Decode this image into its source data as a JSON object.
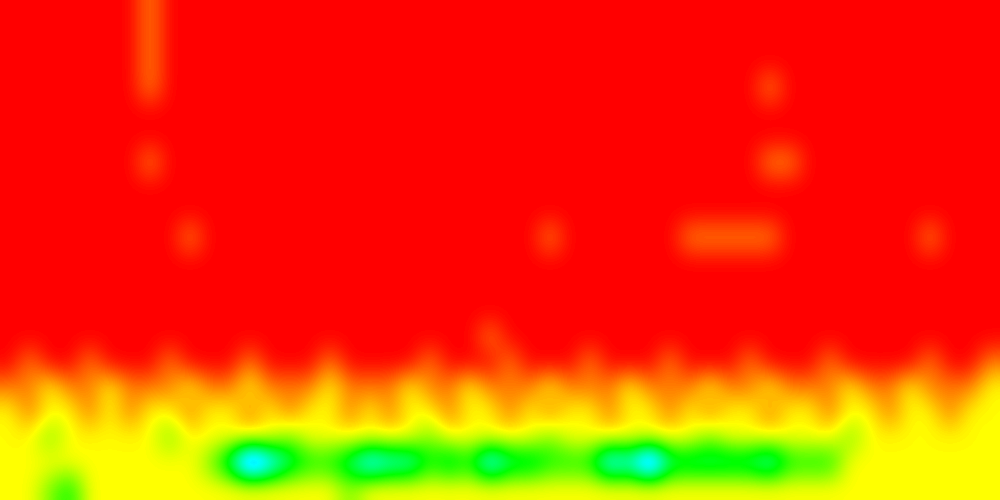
{
  "chart_data": {
    "type": "heatmap",
    "tick_labels": false,
    "zlim": [
      0,
      10
    ],
    "cells": [
      [
        0,
        0,
        0,
        0,
        0,
        0,
        0,
        1,
        0,
        0,
        0,
        0,
        0,
        0,
        0,
        0,
        0,
        0,
        0,
        0,
        0,
        0,
        0,
        0,
        0,
        0,
        0,
        0,
        0,
        0,
        0,
        0,
        0,
        0,
        0,
        0,
        0,
        0,
        0,
        0,
        0,
        0,
        0,
        0,
        0,
        0,
        0,
        0,
        0,
        0
      ],
      [
        0,
        0,
        0,
        0,
        0,
        0,
        0,
        1,
        0,
        0,
        0,
        0,
        0,
        0,
        0,
        0,
        0,
        0,
        0,
        0,
        0,
        0,
        0,
        0,
        0,
        0,
        0,
        0,
        0,
        0,
        0,
        0,
        0,
        0,
        0,
        0,
        0,
        0,
        0,
        0,
        0,
        0,
        0,
        0,
        0,
        0,
        0,
        0,
        0,
        0
      ],
      [
        0,
        0,
        0,
        0,
        0,
        0,
        0,
        1,
        0,
        0,
        0,
        0,
        0,
        0,
        0,
        0,
        0,
        0,
        0,
        0,
        0,
        0,
        0,
        0,
        0,
        0,
        0,
        0,
        0,
        0,
        0,
        0,
        0,
        0,
        0,
        0,
        0,
        0,
        0,
        0,
        0,
        0,
        0,
        0,
        0,
        0,
        0,
        0,
        0,
        0
      ],
      [
        0,
        0,
        0,
        0,
        0,
        0,
        0,
        1,
        0,
        0,
        0,
        0,
        0,
        0,
        0,
        0,
        0,
        0,
        0,
        0,
        0,
        0,
        0,
        0,
        0,
        0,
        0,
        0,
        0,
        0,
        0,
        0,
        0,
        0,
        0,
        0,
        0,
        0,
        1,
        0,
        0,
        0,
        0,
        0,
        0,
        0,
        0,
        0,
        0,
        0
      ],
      [
        0,
        0,
        0,
        0,
        0,
        0,
        0,
        0,
        0,
        0,
        0,
        0,
        0,
        0,
        0,
        0,
        0,
        0,
        0,
        0,
        0,
        0,
        0,
        0,
        0,
        0,
        0,
        0,
        0,
        0,
        0,
        0,
        0,
        0,
        0,
        0,
        0,
        0,
        0,
        0,
        0,
        0,
        0,
        0,
        0,
        0,
        0,
        0,
        0,
        0
      ],
      [
        0,
        0,
        0,
        0,
        0,
        0,
        0,
        0,
        0,
        0,
        0,
        0,
        0,
        0,
        0,
        0,
        0,
        0,
        0,
        0,
        0,
        0,
        0,
        0,
        0,
        0,
        0,
        0,
        0,
        0,
        0,
        0,
        0,
        0,
        0,
        0,
        0,
        0,
        0,
        0,
        0,
        0,
        0,
        0,
        0,
        0,
        0,
        0,
        0,
        0
      ],
      [
        0,
        0,
        0,
        0,
        0,
        0,
        0,
        1,
        0,
        0,
        0,
        0,
        0,
        0,
        0,
        0,
        0,
        0,
        0,
        0,
        0,
        0,
        0,
        0,
        0,
        0,
        0,
        0,
        0,
        0,
        0,
        0,
        0,
        0,
        0,
        0,
        0,
        0,
        1,
        1,
        0,
        0,
        0,
        0,
        0,
        0,
        0,
        0,
        0,
        0
      ],
      [
        0,
        0,
        0,
        0,
        0,
        0,
        0,
        0,
        0,
        0,
        0,
        0,
        0,
        0,
        0,
        0,
        0,
        0,
        0,
        0,
        0,
        0,
        0,
        0,
        0,
        0,
        0,
        0,
        0,
        0,
        0,
        0,
        0,
        0,
        0,
        0,
        0,
        0,
        0,
        0,
        0,
        0,
        0,
        0,
        0,
        0,
        0,
        0,
        0,
        0
      ],
      [
        0,
        0,
        0,
        0,
        0,
        0,
        0,
        0,
        0,
        0,
        0,
        0,
        0,
        0,
        0,
        0,
        0,
        0,
        0,
        0,
        0,
        0,
        0,
        0,
        0,
        0,
        0,
        0,
        0,
        0,
        0,
        0,
        0,
        0,
        0,
        0,
        0,
        0,
        0,
        0,
        0,
        0,
        0,
        0,
        0,
        0,
        0,
        0,
        0,
        0
      ],
      [
        0,
        0,
        0,
        0,
        0,
        0,
        0,
        0,
        0,
        1,
        0,
        0,
        0,
        0,
        0,
        0,
        0,
        0,
        0,
        0,
        0,
        0,
        0,
        0,
        0,
        0,
        0,
        1,
        0,
        0,
        0,
        0,
        0,
        0,
        1,
        1,
        1,
        1,
        1,
        0,
        0,
        0,
        0,
        0,
        0,
        0,
        1,
        0,
        0,
        0
      ],
      [
        0,
        0,
        0,
        0,
        0,
        0,
        0,
        0,
        0,
        0,
        0,
        0,
        0,
        0,
        0,
        0,
        0,
        0,
        0,
        0,
        0,
        0,
        0,
        0,
        0,
        0,
        0,
        0,
        0,
        0,
        0,
        0,
        0,
        0,
        0,
        0,
        0,
        0,
        0,
        0,
        0,
        0,
        0,
        0,
        0,
        0,
        0,
        0,
        0,
        0
      ],
      [
        0,
        0,
        0,
        0,
        0,
        0,
        0,
        0,
        0,
        0,
        0,
        0,
        0,
        0,
        0,
        0,
        0,
        0,
        0,
        0,
        0,
        0,
        0,
        0,
        0,
        0,
        0,
        0,
        0,
        0,
        0,
        0,
        0,
        0,
        0,
        0,
        0,
        0,
        0,
        0,
        0,
        0,
        0,
        0,
        0,
        0,
        0,
        0,
        0,
        0
      ],
      [
        0,
        0,
        0,
        0,
        0,
        0,
        0,
        0,
        0,
        0,
        0,
        0,
        0,
        0,
        0,
        0,
        0,
        0,
        0,
        0,
        0,
        0,
        0,
        0,
        0,
        0,
        0,
        0,
        0,
        0,
        0,
        0,
        0,
        0,
        0,
        0,
        0,
        0,
        0,
        0,
        0,
        0,
        0,
        0,
        0,
        0,
        0,
        0,
        0,
        0
      ],
      [
        0,
        0,
        0,
        0,
        0,
        0,
        0,
        0,
        0,
        0,
        0,
        0,
        0,
        0,
        0,
        0,
        0,
        0,
        0,
        0,
        0,
        0,
        0,
        0,
        1,
        0,
        0,
        0,
        0,
        0,
        0,
        0,
        0,
        0,
        0,
        0,
        0,
        0,
        0,
        0,
        0,
        0,
        0,
        0,
        0,
        0,
        0,
        0,
        0,
        0
      ],
      [
        0,
        1,
        0,
        0,
        1,
        0,
        0,
        0,
        1,
        0,
        0,
        0,
        1,
        0,
        0,
        0,
        1,
        0,
        0,
        0,
        0,
        1,
        0,
        0,
        0,
        1,
        0,
        0,
        0,
        1,
        0,
        0,
        0,
        1,
        0,
        0,
        0,
        1,
        0,
        0,
        0,
        1,
        0,
        0,
        0,
        0,
        1,
        0,
        0,
        1
      ],
      [
        1,
        1,
        2,
        1,
        1,
        2,
        1,
        1,
        1,
        2,
        1,
        1,
        2,
        1,
        1,
        1,
        2,
        1,
        1,
        1,
        2,
        1,
        1,
        2,
        1,
        1,
        1,
        2,
        1,
        1,
        1,
        2,
        1,
        1,
        1,
        2,
        1,
        1,
        2,
        1,
        1,
        1,
        2,
        1,
        1,
        2,
        1,
        1,
        1,
        2
      ],
      [
        2,
        1,
        2,
        2,
        1,
        2,
        1,
        2,
        2,
        1,
        2,
        2,
        1,
        2,
        1,
        2,
        2,
        1,
        2,
        1,
        2,
        2,
        1,
        2,
        2,
        1,
        2,
        1,
        2,
        2,
        1,
        2,
        2,
        1,
        2,
        1,
        2,
        2,
        1,
        2,
        2,
        1,
        2,
        2,
        1,
        2,
        2,
        1,
        2,
        2
      ],
      [
        2,
        2,
        3,
        2,
        2,
        2,
        2,
        2,
        3,
        2,
        2,
        2,
        2,
        2,
        3,
        2,
        2,
        2,
        2,
        2,
        2,
        3,
        2,
        2,
        2,
        2,
        2,
        3,
        2,
        2,
        2,
        2,
        2,
        2,
        2,
        3,
        2,
        2,
        2,
        2,
        2,
        2,
        3,
        2,
        2,
        2,
        2,
        2,
        2,
        2
      ],
      [
        2,
        2,
        2,
        2,
        2,
        2,
        2,
        2,
        2,
        2,
        3,
        5,
        9,
        7,
        5,
        4,
        4,
        5,
        7,
        6,
        6,
        4,
        5,
        4,
        7,
        5,
        5,
        4,
        4,
        4,
        7,
        6,
        9,
        5,
        5,
        5,
        5,
        5,
        6,
        4,
        4,
        4,
        2,
        2,
        2,
        2,
        2,
        2,
        2,
        2
      ],
      [
        2,
        2,
        3,
        4,
        2,
        2,
        2,
        2,
        2,
        2,
        2,
        2,
        2,
        2,
        2,
        2,
        2,
        3,
        2,
        2,
        2,
        2,
        2,
        2,
        2,
        2,
        2,
        2,
        2,
        2,
        2,
        2,
        2,
        2,
        2,
        2,
        2,
        2,
        2,
        2,
        2,
        2,
        2,
        2,
        2,
        2,
        2,
        2,
        2,
        2
      ]
    ]
  }
}
